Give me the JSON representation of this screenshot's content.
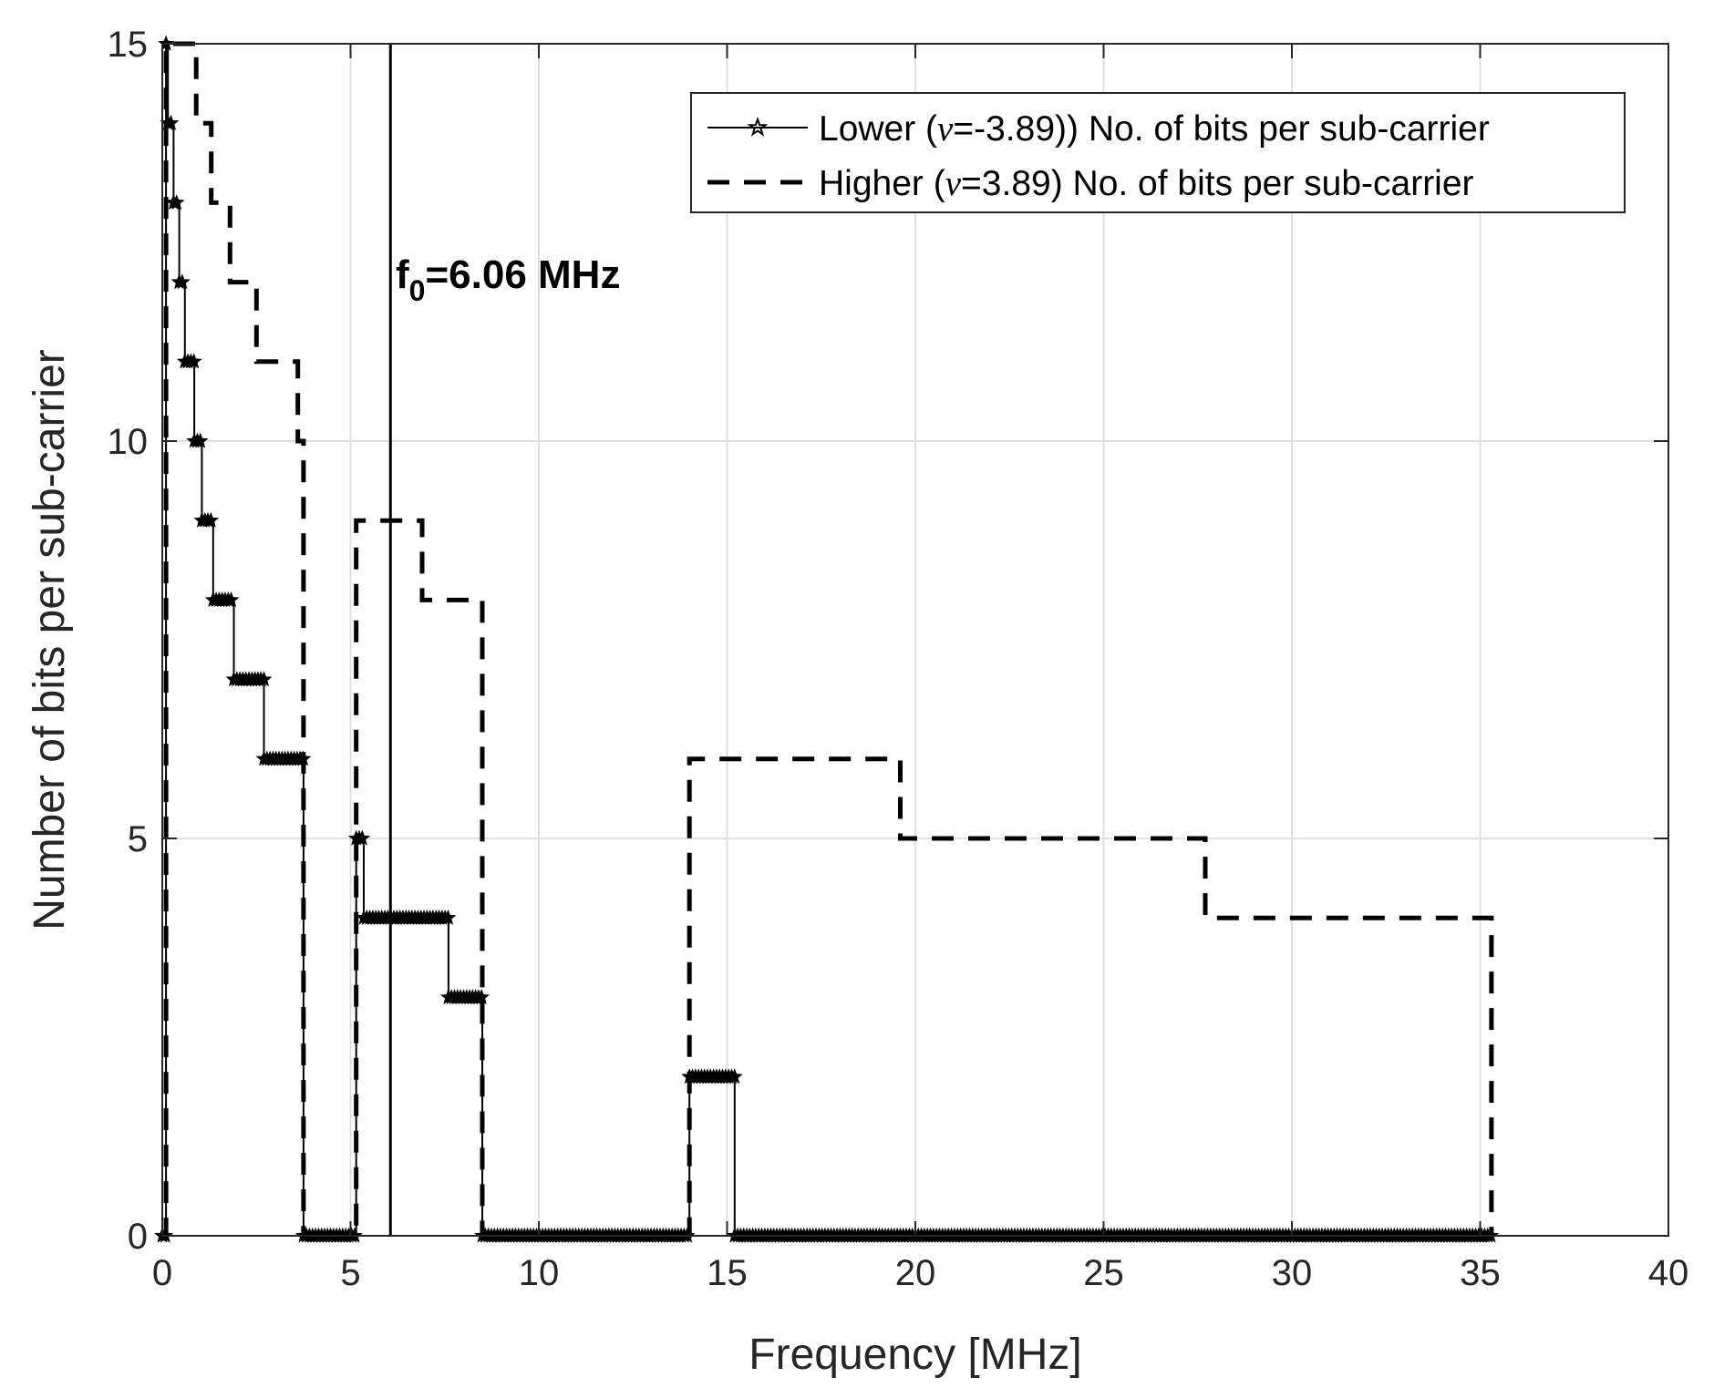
{
  "chart_data": {
    "type": "line",
    "title": "",
    "xlabel": "Frequency [MHz]",
    "ylabel": "Number of bits per sub-carrier",
    "xlim": [
      0,
      40
    ],
    "ylim": [
      0,
      15
    ],
    "xticks": [
      0,
      5,
      10,
      15,
      20,
      25,
      30,
      35,
      40
    ],
    "yticks": [
      0,
      5,
      10,
      15
    ],
    "grid": true,
    "legend_position": "top-right",
    "annotation": {
      "base": "f",
      "sub": "0",
      "rest": "=6.06 MHz",
      "x": 6.06,
      "y": 12.2
    },
    "vline": {
      "x": 6.06,
      "color": "#000000"
    },
    "series": [
      {
        "name": "lower",
        "legend_parts": [
          "Lower (",
          "ν",
          "=-3.89)) No. of bits per sub-carrier"
        ],
        "style": "solid-star",
        "color": "#000000",
        "steps": [
          [
            0.0,
            0.1,
            0
          ],
          [
            0.1,
            0.15,
            15
          ],
          [
            0.15,
            0.3,
            14
          ],
          [
            0.3,
            0.45,
            13
          ],
          [
            0.45,
            0.6,
            12
          ],
          [
            0.6,
            0.85,
            11
          ],
          [
            0.85,
            1.05,
            10
          ],
          [
            1.05,
            1.35,
            9
          ],
          [
            1.35,
            1.9,
            8
          ],
          [
            1.9,
            2.7,
            7
          ],
          [
            2.7,
            3.75,
            6
          ],
          [
            3.75,
            5.15,
            0
          ],
          [
            5.15,
            5.35,
            5
          ],
          [
            5.35,
            7.6,
            4
          ],
          [
            7.6,
            8.5,
            3
          ],
          [
            8.5,
            14.0,
            0
          ],
          [
            14.0,
            15.2,
            2
          ],
          [
            15.2,
            35.3,
            0
          ]
        ]
      },
      {
        "name": "higher",
        "legend_parts": [
          "Higher (",
          "ν",
          "=3.89) No. of bits per sub-carrier"
        ],
        "style": "dashed",
        "color": "#000000",
        "steps": [
          [
            0.0,
            0.1,
            0
          ],
          [
            0.1,
            0.9,
            15
          ],
          [
            0.9,
            1.3,
            14
          ],
          [
            1.3,
            1.8,
            13
          ],
          [
            1.8,
            2.5,
            12
          ],
          [
            2.5,
            3.6,
            11
          ],
          [
            3.6,
            3.75,
            10
          ],
          [
            3.75,
            5.15,
            0
          ],
          [
            5.15,
            6.9,
            9
          ],
          [
            6.9,
            8.5,
            8
          ],
          [
            8.5,
            14.0,
            0
          ],
          [
            14.0,
            19.6,
            6
          ],
          [
            19.6,
            27.7,
            5
          ],
          [
            27.7,
            35.3,
            4
          ]
        ]
      }
    ]
  }
}
